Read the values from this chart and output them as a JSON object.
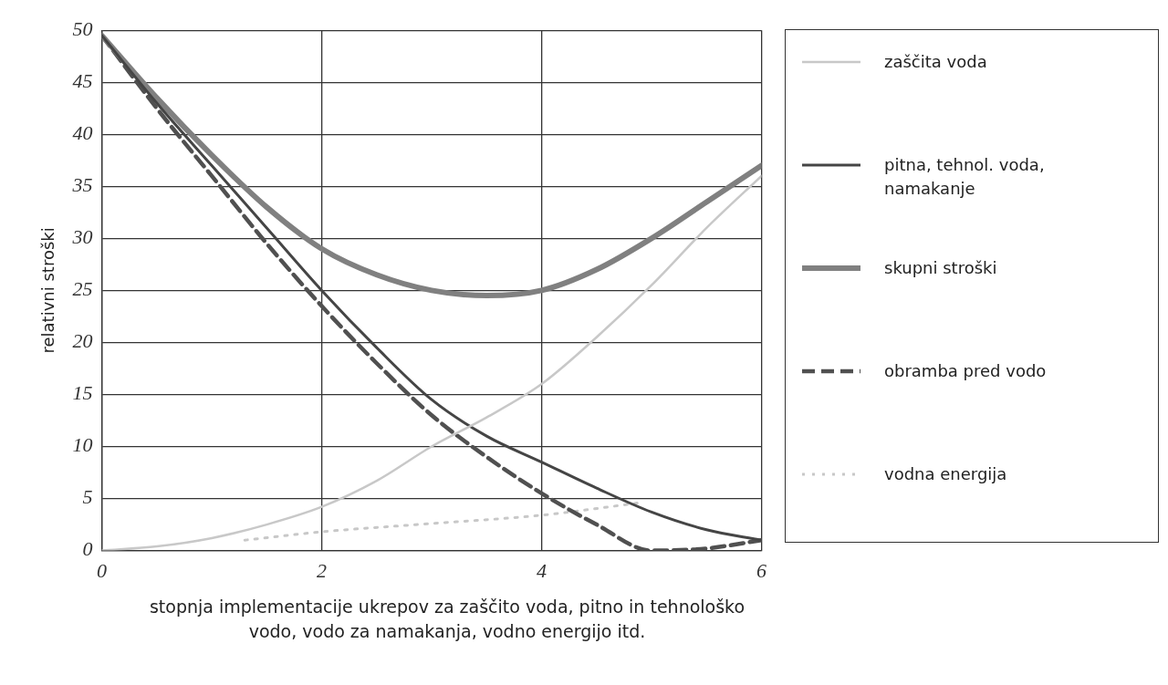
{
  "chart_data": {
    "type": "line",
    "xlabel": "stopnja implementacije ukrepov za zaščito voda, pitno in tehnološko vodo, vodo za namakanja, vodno energijo itd.",
    "ylabel": "relativni stroški",
    "xlim": [
      0,
      6
    ],
    "xticks": [
      0,
      2,
      4,
      6
    ],
    "ylim": [
      0,
      50
    ],
    "yticks": [
      0,
      5,
      10,
      15,
      20,
      25,
      30,
      35,
      40,
      45,
      50
    ],
    "grid": true,
    "legend": "right",
    "marker": "none",
    "series": [
      {
        "name": "zaščita voda",
        "color": "#c8c8c8",
        "line_style": "solid",
        "x": [
          0,
          0.5,
          1,
          1.5,
          2,
          2.5,
          3,
          3.5,
          4,
          4.5,
          5,
          5.5,
          6
        ],
        "values": [
          0,
          0.4,
          1.2,
          2.5,
          4.2,
          6.7,
          10,
          12.8,
          16,
          20.5,
          25.5,
          31,
          36
        ]
      },
      {
        "name": "pitna, tehnol. voda, namakanje",
        "color": "#454545",
        "line_style": "solid",
        "x": [
          0,
          0.5,
          1,
          1.5,
          2,
          2.5,
          3,
          3.5,
          4,
          4.5,
          5,
          5.5,
          6
        ],
        "values": [
          49.5,
          43,
          37,
          31,
          25,
          19.5,
          14.5,
          11,
          8.5,
          6,
          3.7,
          2,
          1
        ]
      },
      {
        "name": "skupni stroški",
        "color": "#808080",
        "line_style": "solid",
        "x": [
          0,
          0.5,
          1,
          1.5,
          2,
          2.5,
          3,
          3.5,
          4,
          4.5,
          5,
          5.5,
          6
        ],
        "values": [
          49.5,
          43.5,
          38,
          33,
          29,
          26.5,
          25,
          24.5,
          25,
          27,
          30,
          33.5,
          37
        ]
      },
      {
        "name": "obramba pred vodo",
        "color": "#505050",
        "line_style": "dashed",
        "x": [
          0,
          0.5,
          1,
          1.5,
          2,
          2.5,
          3,
          3.5,
          4,
          4.5,
          5,
          5.5,
          6
        ],
        "values": [
          49.5,
          42.5,
          36,
          29.5,
          23.5,
          18,
          13,
          9,
          5.5,
          2.5,
          0,
          0.2,
          1
        ]
      },
      {
        "name": "vodna energija",
        "color": "#c8c8c8",
        "line_style": "dotted",
        "x": [
          1.3,
          2,
          3,
          4,
          4.9
        ],
        "values": [
          1,
          1.8,
          2.6,
          3.4,
          4.6
        ]
      }
    ]
  }
}
